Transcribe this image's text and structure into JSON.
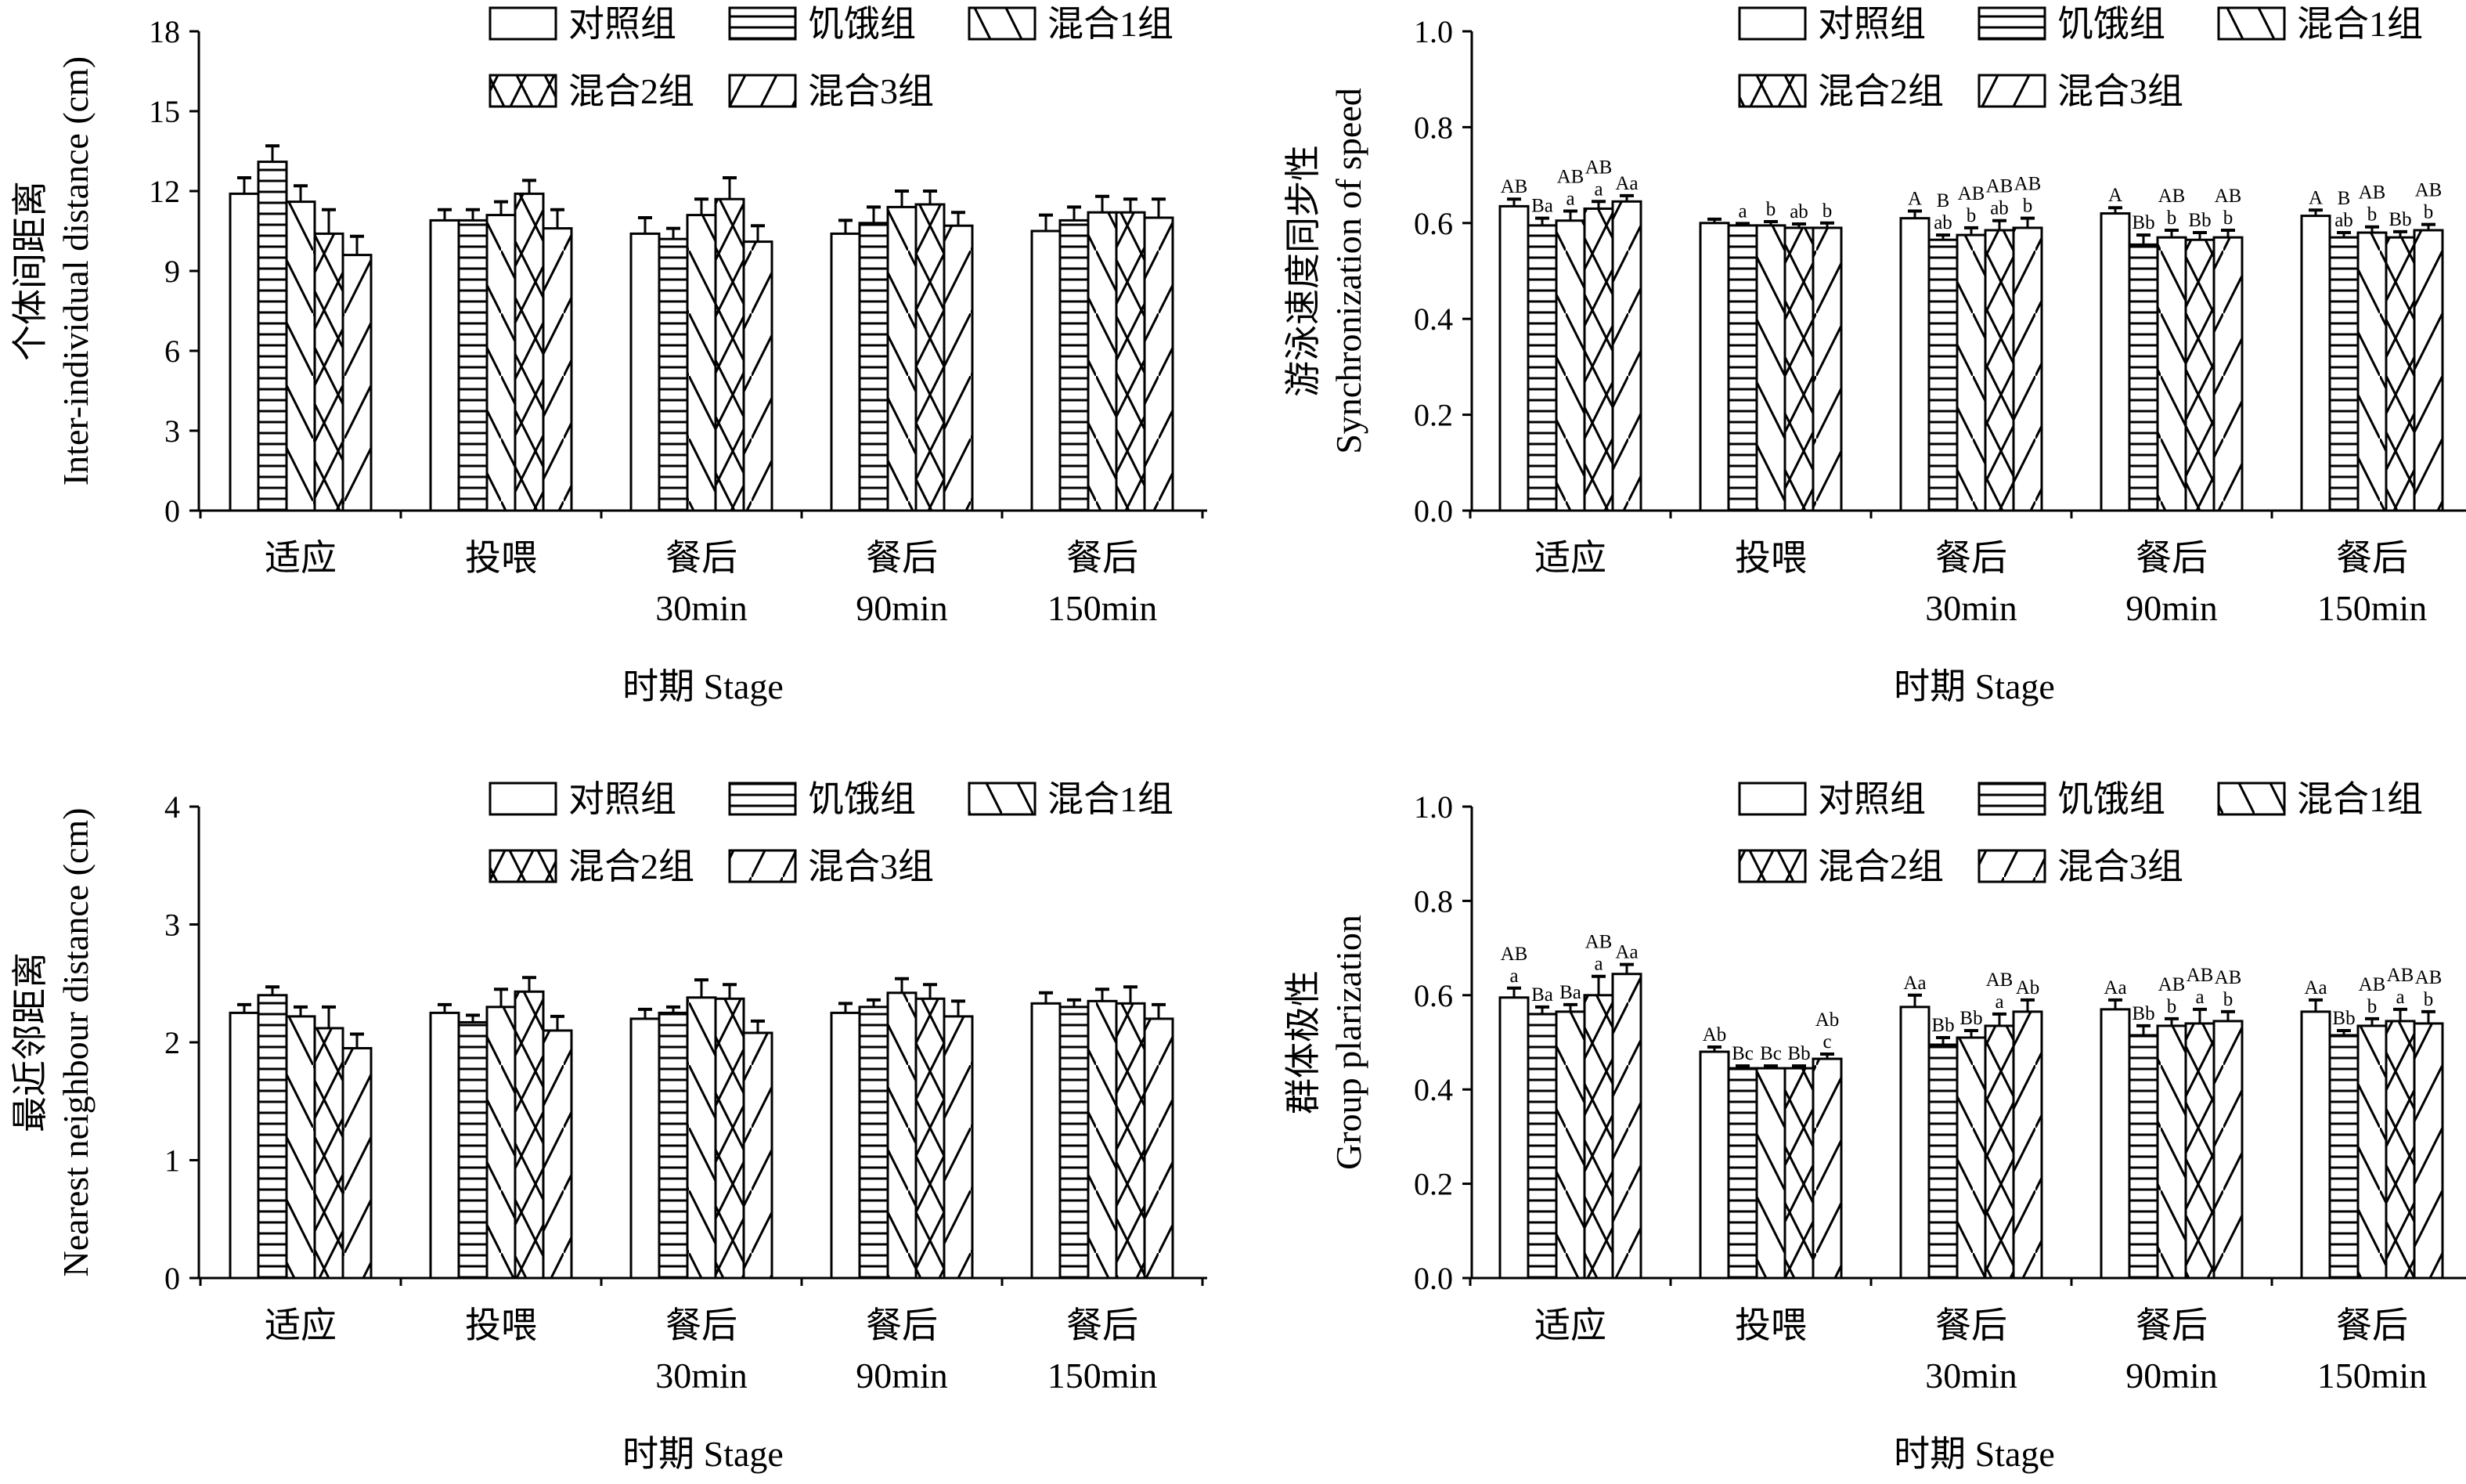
{
  "legend": [
    "对照组",
    "饥饿组",
    "混合1组",
    "混合2组",
    "混合3组"
  ],
  "patterns": [
    "open",
    "horizontal",
    "backslash",
    "cross",
    "slash"
  ],
  "categories": [
    [
      "适应"
    ],
    [
      "投喂"
    ],
    [
      "餐后",
      "30min"
    ],
    [
      "餐后",
      "90min"
    ],
    [
      "餐后",
      "150min"
    ]
  ],
  "chart_data": [
    {
      "type": "bar",
      "title": "",
      "xlabel": "时期 Stage",
      "ylabel": [
        "个体间距离",
        "Inter-individual distance (cm)"
      ],
      "ylim": [
        0,
        18
      ],
      "yticks": [
        0,
        3,
        6,
        9,
        12,
        15,
        18
      ],
      "tick_fmt": 0,
      "values": [
        [
          11.9,
          13.1,
          11.6,
          10.4,
          9.6
        ],
        [
          10.9,
          10.9,
          11.1,
          11.9,
          10.6
        ],
        [
          10.4,
          10.2,
          11.1,
          11.7,
          10.1
        ],
        [
          10.4,
          10.8,
          11.4,
          11.5,
          10.7
        ],
        [
          10.5,
          10.9,
          11.2,
          11.2,
          11.0
        ]
      ],
      "errors": [
        [
          0.6,
          0.6,
          0.6,
          0.9,
          0.7
        ],
        [
          0.4,
          0.4,
          0.5,
          0.5,
          0.7
        ],
        [
          0.6,
          0.4,
          0.6,
          0.8,
          0.6
        ],
        [
          0.5,
          0.6,
          0.6,
          0.5,
          0.5
        ],
        [
          0.6,
          0.5,
          0.6,
          0.5,
          0.7
        ]
      ],
      "labels": null
    },
    {
      "type": "bar",
      "title": "",
      "xlabel": "时期 Stage",
      "ylabel": [
        "游泳速度同步性",
        "Synchronization of speed"
      ],
      "ylim": [
        0,
        1.0
      ],
      "yticks": [
        0,
        0.2,
        0.4,
        0.6,
        0.8,
        1.0
      ],
      "tick_fmt": 1,
      "values": [
        [
          0.635,
          0.595,
          0.605,
          0.63,
          0.645
        ],
        [
          0.6,
          0.595,
          0.595,
          0.59,
          0.59
        ],
        [
          0.61,
          0.565,
          0.575,
          0.585,
          0.59
        ],
        [
          0.62,
          0.555,
          0.57,
          0.565,
          0.57
        ],
        [
          0.615,
          0.57,
          0.58,
          0.57,
          0.585
        ]
      ],
      "errors": [
        [
          0.015,
          0.015,
          0.02,
          0.015,
          0.012
        ],
        [
          0.008,
          0.004,
          0.008,
          0.008,
          0.01
        ],
        [
          0.015,
          0.01,
          0.015,
          0.02,
          0.02
        ],
        [
          0.012,
          0.02,
          0.015,
          0.015,
          0.015
        ],
        [
          0.012,
          0.01,
          0.012,
          0.012,
          0.012
        ]
      ],
      "labels": [
        [
          "AB",
          "Ba",
          "AB\na",
          "AB\na",
          "Aa"
        ],
        [
          "",
          "a",
          "b",
          "ab",
          "b"
        ],
        [
          "A",
          "B\nab",
          "AB\nb",
          "AB\nab",
          "AB\nb"
        ],
        [
          "A",
          "Bb",
          "AB\nb",
          "Bb",
          "AB\nb"
        ],
        [
          "A",
          "B\nab",
          "AB\nb",
          "Bb",
          "AB\nb"
        ]
      ]
    },
    {
      "type": "bar",
      "title": "",
      "xlabel": "时期 Stage",
      "ylabel": [
        "最近邻距离",
        "Nearest neighbour distance (cm)"
      ],
      "ylim": [
        0,
        4
      ],
      "yticks": [
        0,
        1,
        2,
        3,
        4
      ],
      "tick_fmt": 0,
      "values": [
        [
          2.25,
          2.4,
          2.22,
          2.12,
          1.95
        ],
        [
          2.25,
          2.17,
          2.3,
          2.43,
          2.1
        ],
        [
          2.2,
          2.25,
          2.38,
          2.37,
          2.08
        ],
        [
          2.25,
          2.3,
          2.42,
          2.37,
          2.22
        ],
        [
          2.33,
          2.3,
          2.35,
          2.33,
          2.2
        ]
      ],
      "errors": [
        [
          0.07,
          0.07,
          0.08,
          0.18,
          0.12
        ],
        [
          0.07,
          0.06,
          0.15,
          0.12,
          0.12
        ],
        [
          0.08,
          0.05,
          0.15,
          0.12,
          0.1
        ],
        [
          0.08,
          0.06,
          0.12,
          0.12,
          0.13
        ],
        [
          0.09,
          0.06,
          0.1,
          0.14,
          0.12
        ]
      ],
      "labels": null
    },
    {
      "type": "bar",
      "title": "",
      "xlabel": "时期 Stage",
      "ylabel": [
        "群体极性",
        "Group plarization"
      ],
      "ylim": [
        0,
        1.0
      ],
      "yticks": [
        0,
        0.2,
        0.4,
        0.6,
        0.8,
        1.0
      ],
      "tick_fmt": 1,
      "values": [
        [
          0.595,
          0.56,
          0.565,
          0.6,
          0.645
        ],
        [
          0.48,
          0.445,
          0.445,
          0.445,
          0.465
        ],
        [
          0.575,
          0.495,
          0.51,
          0.535,
          0.565
        ],
        [
          0.57,
          0.515,
          0.535,
          0.54,
          0.545
        ],
        [
          0.565,
          0.515,
          0.535,
          0.545,
          0.54
        ]
      ],
      "errors": [
        [
          0.02,
          0.015,
          0.015,
          0.04,
          0.02
        ],
        [
          0.01,
          0.005,
          0.005,
          0.005,
          0.01
        ],
        [
          0.025,
          0.015,
          0.015,
          0.025,
          0.025
        ],
        [
          0.02,
          0.02,
          0.015,
          0.03,
          0.02
        ],
        [
          0.025,
          0.01,
          0.015,
          0.025,
          0.025
        ]
      ],
      "labels": [
        [
          "AB\na",
          "Ba",
          "Ba",
          "AB\na",
          "Aa"
        ],
        [
          "Ab",
          "Bc",
          "Bc",
          "Bb",
          "Ab\nc"
        ],
        [
          "Aa",
          "Bb",
          "Bb",
          "AB\na",
          "Ab"
        ],
        [
          "Aa",
          "Bb",
          "AB\nb",
          "AB\na",
          "AB\nb"
        ],
        [
          "Aa",
          "Bb",
          "AB\nb",
          "AB\na",
          "AB\nb"
        ]
      ]
    }
  ]
}
